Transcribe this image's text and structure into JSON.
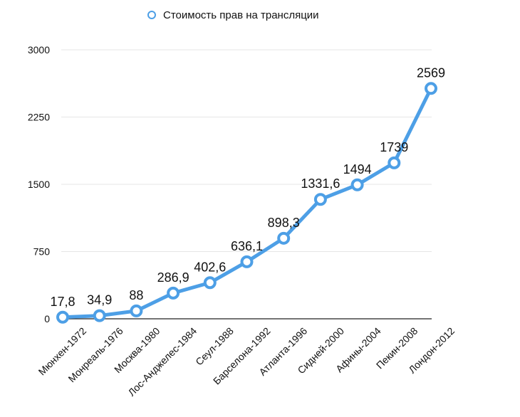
{
  "chart_data": {
    "type": "line",
    "categories": [
      "Мюнхен-1972",
      "Монреаль-1976",
      "Москва-1980",
      "Лос-Анджелес-1984",
      "Сеул-1988",
      "Барселона-1992",
      "Атланта-1996",
      "Сидней-2000",
      "Афины-2004",
      "Пекин-2008",
      "Лондон-2012"
    ],
    "series": [
      {
        "name": "Стоимость прав на трансляции",
        "values": [
          17.8,
          34.9,
          88,
          286.9,
          402.6,
          636.1,
          898.3,
          1331.6,
          1494,
          1739,
          2569
        ],
        "labels": [
          "17,8",
          "34,9",
          "88",
          "286,9",
          "402,6",
          "636,1",
          "898,3",
          "1331,6",
          "1494",
          "1739",
          "2569"
        ],
        "color": "#4d9fe6"
      }
    ],
    "yticks": [
      "0",
      "750",
      "1500",
      "2250",
      "3000"
    ],
    "ylim": [
      0,
      3000
    ],
    "grid": true,
    "legend": "top"
  }
}
